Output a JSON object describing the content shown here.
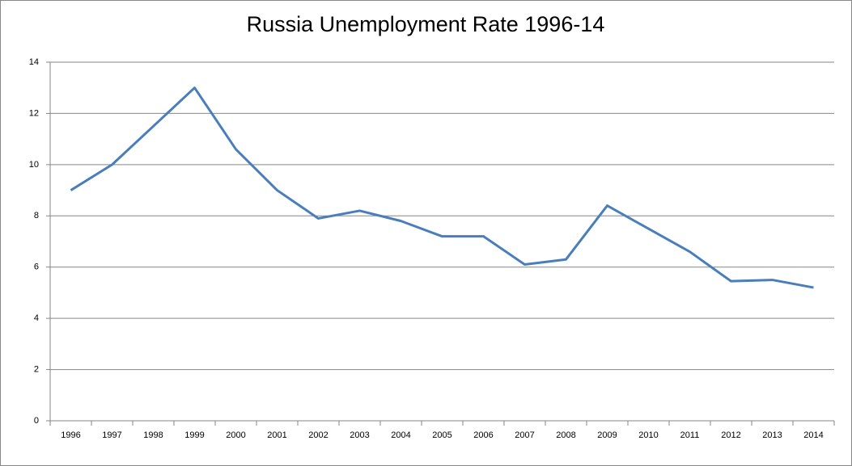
{
  "chart_data": {
    "type": "line",
    "title": "Russia Unemployment Rate 1996-14",
    "categories": [
      "1996",
      "1997",
      "1998",
      "1999",
      "2000",
      "2001",
      "2002",
      "2003",
      "2004",
      "2005",
      "2006",
      "2007",
      "2008",
      "2009",
      "2010",
      "2011",
      "2012",
      "2013",
      "2014"
    ],
    "values": [
      9.0,
      10.0,
      11.5,
      13.0,
      10.6,
      9.0,
      7.9,
      8.2,
      7.8,
      7.2,
      7.2,
      6.1,
      6.3,
      8.4,
      7.5,
      6.6,
      5.45,
      5.5,
      5.2
    ],
    "color": "#4a7ebb",
    "ylim": [
      0,
      14
    ],
    "yticks": [
      0,
      2,
      4,
      6,
      8,
      10,
      12,
      14
    ],
    "grid": true
  }
}
